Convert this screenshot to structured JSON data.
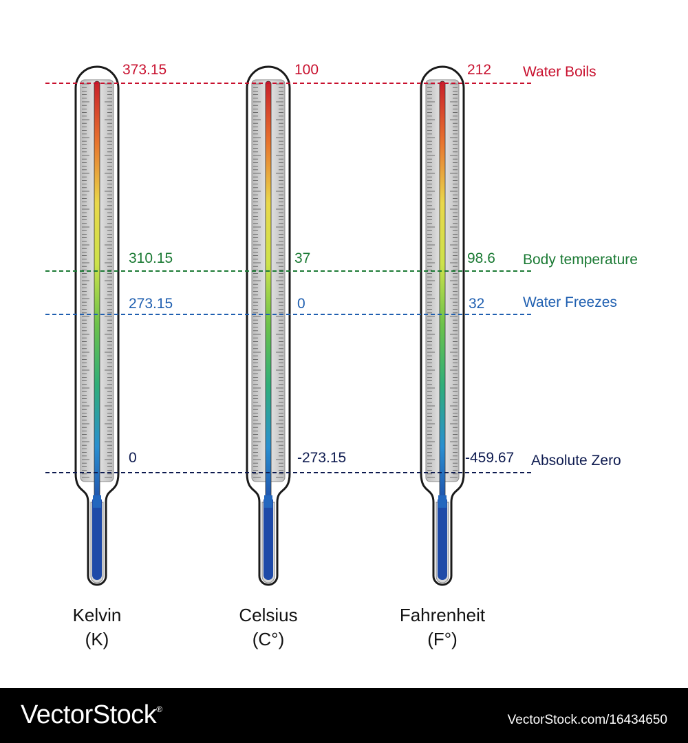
{
  "thermometers": [
    {
      "name": "Kelvin",
      "unit": "(K)",
      "values": {
        "boils": "373.15",
        "body": "310.15",
        "freezes": "273.15",
        "zero": "0"
      }
    },
    {
      "name": "Celsius",
      "unit": "(C°)",
      "values": {
        "boils": "100",
        "body": "37",
        "freezes": "0",
        "zero": "-273.15"
      }
    },
    {
      "name": "Fahrenheit",
      "unit": "(F°)",
      "values": {
        "boils": "212",
        "body": "98.6",
        "freezes": "32",
        "zero": "-459.67"
      }
    }
  ],
  "reference_lines": [
    {
      "key": "boils",
      "label": "Water Boils",
      "color": "#c8102e"
    },
    {
      "key": "body",
      "label": "Body temperature",
      "color": "#1b7a34"
    },
    {
      "key": "freezes",
      "label": "Water Freezes",
      "color": "#1f5fb0"
    },
    {
      "key": "zero",
      "label": "Absolute Zero",
      "color": "#0d1a4f"
    }
  ],
  "gradient_colors": [
    "#c81e2a",
    "#e8742e",
    "#e9d84a",
    "#cde24a",
    "#6cc24a",
    "#2fae7a",
    "#2a8fd0",
    "#1e4aa8"
  ],
  "footer": {
    "brand": "VectorStock",
    "registered_mark": "®",
    "image_id": "VectorStock.com/16434650"
  }
}
